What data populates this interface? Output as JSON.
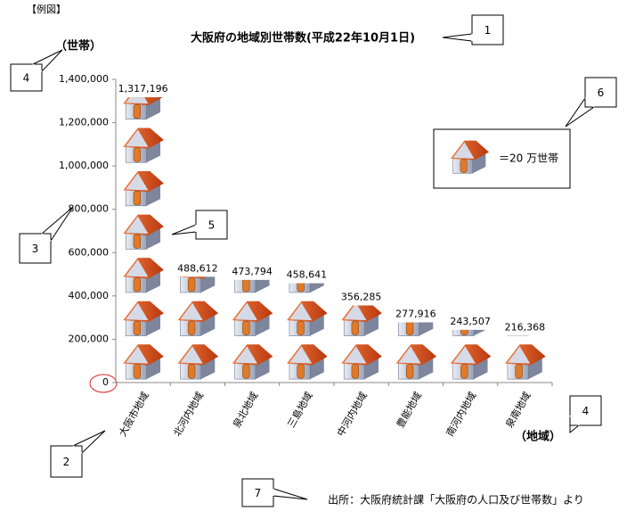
{
  "chart_data": {
    "type": "pictograph",
    "note_label": "【例図】",
    "title": "大阪府の地域別世帯数(平成22年10月1日)",
    "y_axis_label": "（世帯）",
    "x_axis_label": "（地域）",
    "source": "出所：大阪府統計課「大阪府の人口及び世帯数」より",
    "legend_label": "＝20 万世帯",
    "icon_unit": 200000,
    "categories": [
      "大阪市地域",
      "北河内地域",
      "泉北地域",
      "三島地域",
      "中河内地域",
      "豊能地域",
      "南河内地域",
      "泉南地域"
    ],
    "values": [
      1317196,
      488612,
      473794,
      458641,
      356285,
      277916,
      243507,
      216368
    ],
    "value_labels": [
      "1,317,196",
      "488,612",
      "473,794",
      "458,641",
      "356,285",
      "277,916",
      "243,507",
      "216,368"
    ],
    "ylim": [
      0,
      1400000
    ],
    "yticks": [
      0,
      {
        "value": 200000,
        "label": "200,000"
      },
      {
        "value": 400000,
        "label": "400,000"
      },
      {
        "value": 600000,
        "label": "600,000"
      },
      {
        "value": 800000,
        "label": "800,000"
      },
      {
        "value": 1000000,
        "label": "1,000,000"
      },
      {
        "value": 1200000,
        "label": "1,200,000"
      },
      {
        "value": 1400000,
        "label": "1,400,000"
      }
    ],
    "callouts": [
      "1",
      "2",
      "3",
      "4",
      "4",
      "5",
      "6",
      "7"
    ]
  }
}
